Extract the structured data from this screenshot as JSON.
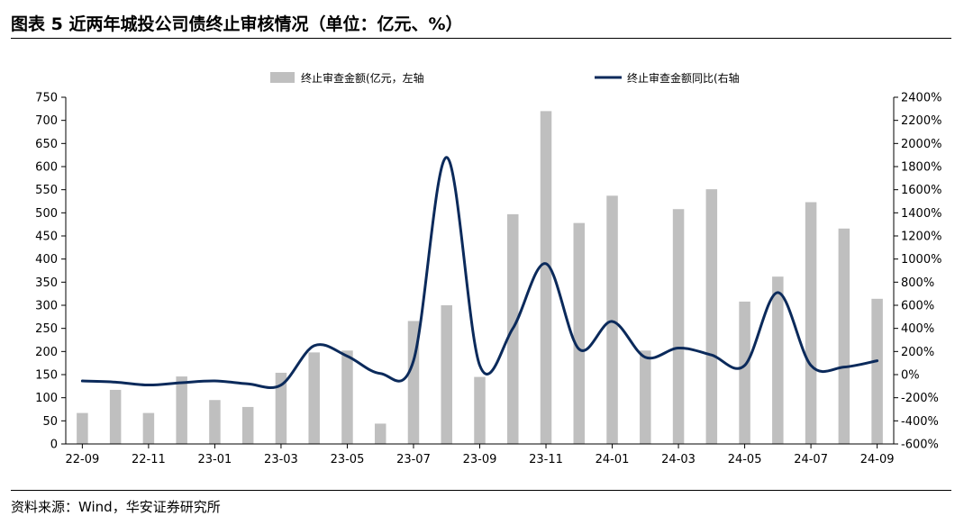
{
  "figure_title": "图表 5  近两年城投公司债终止审核情况（单位：亿元、%）",
  "source": "资料来源：Wind，华安证券研究所",
  "colors": {
    "bar": "#bfbfbf",
    "line": "#0b2a5b",
    "axis": "#000000"
  },
  "chart_data": {
    "type": "bar",
    "categories": [
      "22-09",
      "22-10",
      "22-11",
      "22-12",
      "23-01",
      "23-02",
      "23-03",
      "23-04",
      "23-05",
      "23-06",
      "23-07",
      "23-08",
      "23-09",
      "23-10",
      "23-11",
      "23-12",
      "24-01",
      "24-02",
      "24-03",
      "24-04",
      "24-05",
      "24-06",
      "24-07",
      "24-08",
      "24-09"
    ],
    "x_tick_labels": [
      "22-09",
      "22-11",
      "23-01",
      "23-03",
      "23-05",
      "23-07",
      "23-09",
      "23-11",
      "24-01",
      "24-03",
      "24-05",
      "24-07",
      "24-09"
    ],
    "series": [
      {
        "name": "终止审查金额(亿元，左轴",
        "type": "bar",
        "axis": "left",
        "values": [
          67,
          117,
          67,
          146,
          95,
          80,
          154,
          198,
          202,
          44,
          266,
          300,
          145,
          497,
          720,
          478,
          537,
          202,
          508,
          551,
          308,
          362,
          523,
          466,
          314
        ]
      },
      {
        "name": "终止审查金额同比(右轴",
        "type": "line",
        "axis": "right",
        "values": [
          -55,
          -65,
          -90,
          -70,
          -55,
          -80,
          -90,
          250,
          160,
          10,
          120,
          1880,
          80,
          400,
          960,
          220,
          460,
          150,
          230,
          170,
          80,
          710,
          80,
          65,
          120
        ]
      }
    ],
    "y_left": {
      "ylim": [
        0,
        750
      ],
      "ticks": [
        "0",
        "50",
        "100",
        "150",
        "200",
        "250",
        "300",
        "350",
        "400",
        "450",
        "500",
        "550",
        "600",
        "650",
        "700",
        "750"
      ]
    },
    "y_right": {
      "ylim": [
        -600,
        2400
      ],
      "ticks": [
        "-600%",
        "-400%",
        "-200%",
        "0%",
        "200%",
        "400%",
        "600%",
        "800%",
        "1000%",
        "1200%",
        "1400%",
        "1600%",
        "1800%",
        "2000%",
        "2200%",
        "2400%"
      ]
    },
    "legend_position": "top-center",
    "grid": false
  }
}
